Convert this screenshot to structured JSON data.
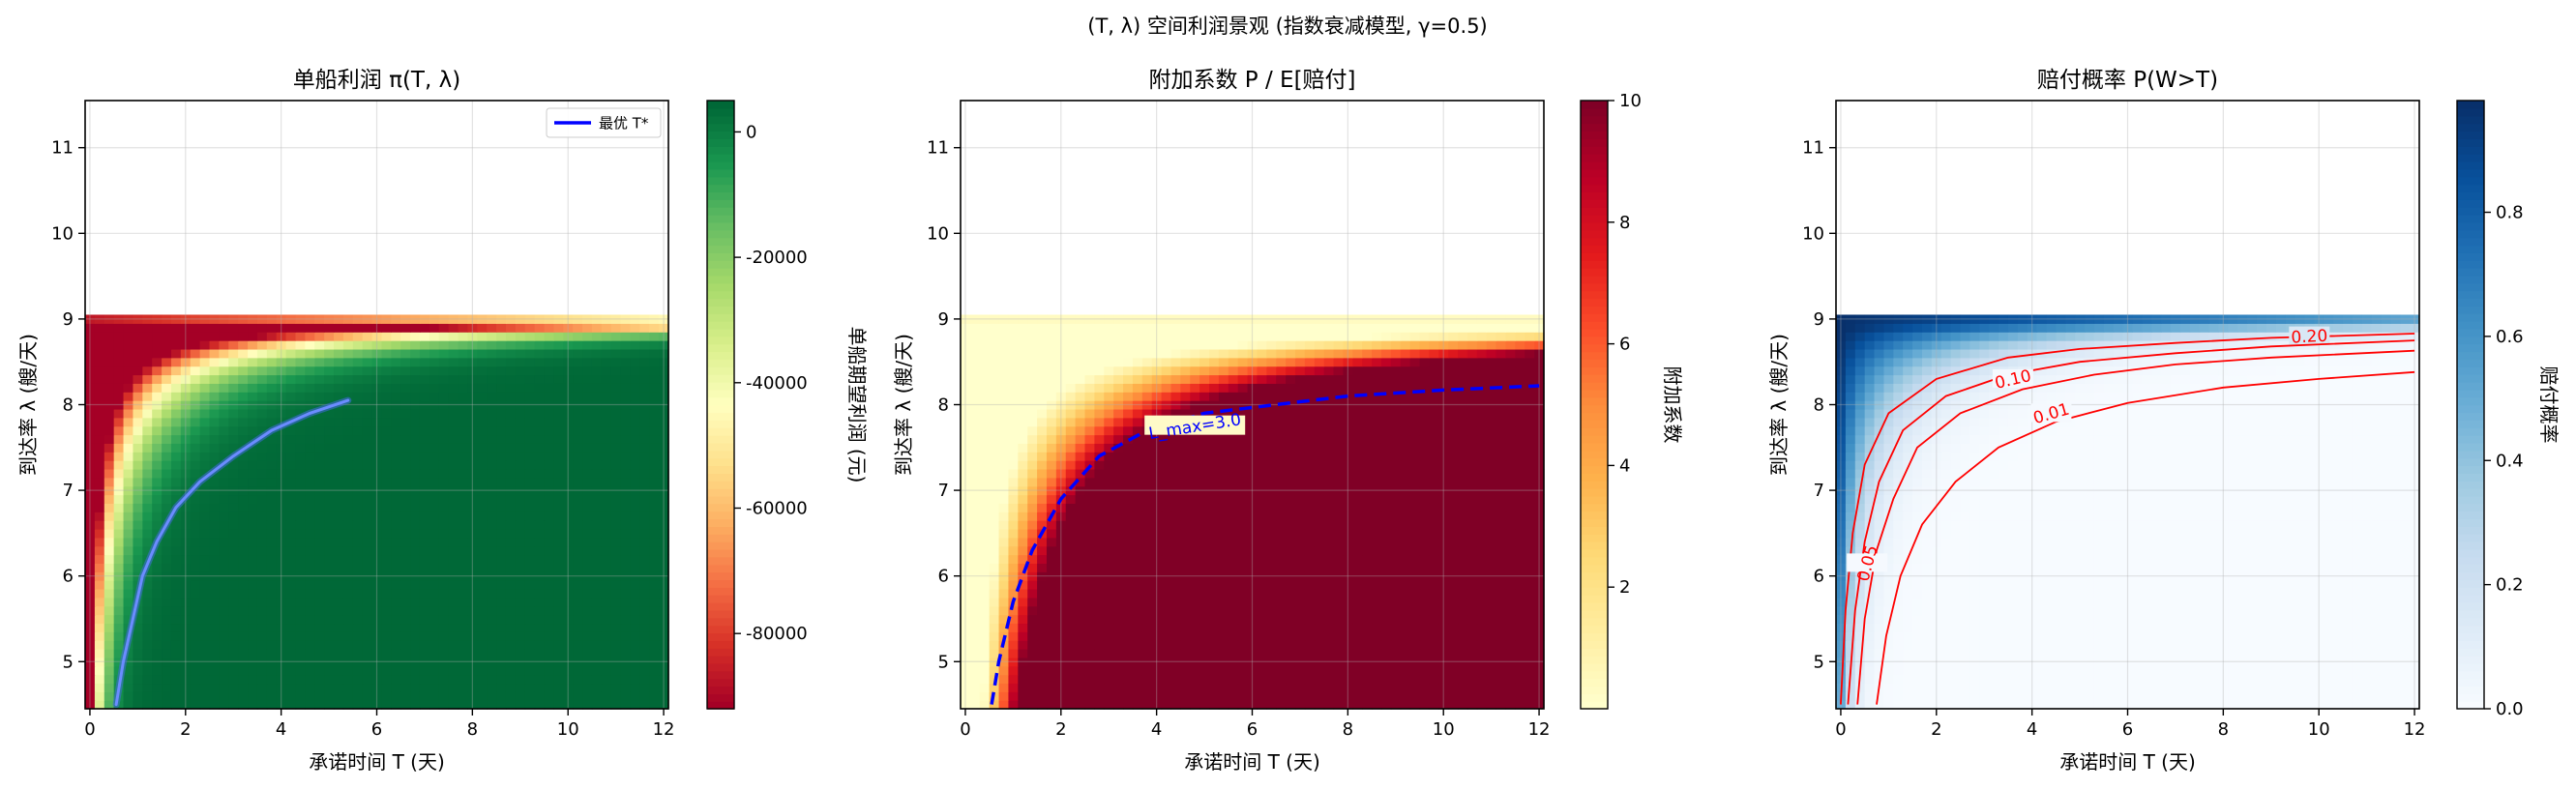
{
  "figure": {
    "suptitle": "(T, λ) 空间利润景观  (指数衰减模型, γ=0.5)"
  },
  "chart_data": [
    {
      "type": "heatmap",
      "title": "单船利润 π(T, λ)",
      "xlabel": "承诺时间 T (天)",
      "ylabel": "到达率 λ (艘/天)",
      "xlim": [
        -0.1,
        12.1
      ],
      "ylim": [
        4.45,
        11.55
      ],
      "xticks": [
        "0",
        "2",
        "4",
        "6",
        "8",
        "10",
        "12"
      ],
      "yticks": [
        "5",
        "6",
        "7",
        "8",
        "9",
        "10",
        "11"
      ],
      "grid": true,
      "colormap": "RdYlGn",
      "colorbar": {
        "label": "单船期望利润 (元)",
        "range": [
          -92000,
          5000
        ],
        "ticks": [
          0,
          -20000,
          -40000,
          -60000,
          -80000
        ],
        "tick_labels": [
          "0",
          "-20000",
          "-40000",
          "-60000",
          "-80000"
        ]
      },
      "series": [
        {
          "name": "最优 T*",
          "color": "#0000ff",
          "x": [
            0.55,
            0.7,
            0.9,
            1.1,
            1.4,
            1.8,
            2.3,
            3.0,
            3.8,
            4.6,
            5.4
          ],
          "y": [
            4.5,
            5.0,
            5.5,
            6.0,
            6.4,
            6.8,
            7.1,
            7.4,
            7.7,
            7.9,
            8.05
          ]
        }
      ],
      "legend": {
        "placement": "top-right"
      }
    },
    {
      "type": "heatmap",
      "title": "附加系数 P / E[赔付]",
      "xlabel": "承诺时间 T (天)",
      "ylabel": "到达率 λ (艘/天)",
      "xlim": [
        -0.1,
        12.1
      ],
      "ylim": [
        4.45,
        11.55
      ],
      "xticks": [
        "0",
        "2",
        "4",
        "6",
        "8",
        "10",
        "12"
      ],
      "yticks": [
        "5",
        "6",
        "7",
        "8",
        "9",
        "10",
        "11"
      ],
      "grid": true,
      "colormap": "YlOrRd",
      "colorbar": {
        "label": "附加系数",
        "range": [
          0,
          10
        ],
        "ticks": [
          2,
          4,
          6,
          8,
          10
        ],
        "tick_labels": [
          "2",
          "4",
          "6",
          "8",
          "10"
        ]
      },
      "contour": {
        "label": "L_max=3.0",
        "style": "dashed",
        "color": "#0000ff",
        "x": [
          0.55,
          0.7,
          1.0,
          1.4,
          2.0,
          2.8,
          3.8,
          5.0,
          6.5,
          8.0,
          10.0,
          12.0
        ],
        "y": [
          4.5,
          5.0,
          5.7,
          6.3,
          6.9,
          7.4,
          7.7,
          7.9,
          8.0,
          8.1,
          8.17,
          8.22
        ]
      }
    },
    {
      "type": "heatmap",
      "title": "赔付概率 P(W>T)",
      "xlabel": "承诺时间 T (天)",
      "ylabel": "到达率 λ (艘/天)",
      "xlim": [
        -0.1,
        12.1
      ],
      "ylim": [
        4.45,
        11.55
      ],
      "xticks": [
        "0",
        "2",
        "4",
        "6",
        "8",
        "10",
        "12"
      ],
      "yticks": [
        "5",
        "6",
        "7",
        "8",
        "9",
        "10",
        "11"
      ],
      "grid": true,
      "colormap": "Blues",
      "colorbar": {
        "label": "赔付概率",
        "range": [
          0,
          0.98
        ],
        "ticks": [
          0,
          0.2,
          0.4,
          0.6,
          0.8
        ],
        "tick_labels": [
          "0.0",
          "0.2",
          "0.4",
          "0.6",
          "0.8"
        ]
      },
      "contours": [
        {
          "label": "0.20",
          "x": [
            0.0,
            0.1,
            0.25,
            0.5,
            1.0,
            2.0,
            3.5,
            5.0,
            7.0,
            9.0,
            12.0
          ],
          "y": [
            4.5,
            5.6,
            6.5,
            7.3,
            7.9,
            8.3,
            8.55,
            8.65,
            8.72,
            8.78,
            8.83
          ]
        },
        {
          "label": "0.10",
          "x": [
            0.15,
            0.3,
            0.5,
            0.8,
            1.3,
            2.2,
            3.5,
            5.0,
            7.0,
            9.0,
            12.0
          ],
          "y": [
            4.5,
            5.6,
            6.4,
            7.1,
            7.7,
            8.1,
            8.35,
            8.5,
            8.6,
            8.68,
            8.75
          ]
        },
        {
          "label": "0.05",
          "x": [
            0.35,
            0.5,
            0.75,
            1.1,
            1.6,
            2.5,
            3.8,
            5.3,
            7.0,
            9.0,
            12.0
          ],
          "y": [
            4.5,
            5.5,
            6.3,
            6.9,
            7.5,
            7.9,
            8.18,
            8.35,
            8.47,
            8.55,
            8.63
          ]
        },
        {
          "label": "0.01",
          "x": [
            0.75,
            0.95,
            1.25,
            1.7,
            2.4,
            3.3,
            4.5,
            6.0,
            8.0,
            10.0,
            12.0
          ],
          "y": [
            4.5,
            5.3,
            6.0,
            6.6,
            7.1,
            7.5,
            7.8,
            8.02,
            8.2,
            8.3,
            8.38
          ]
        }
      ]
    }
  ]
}
